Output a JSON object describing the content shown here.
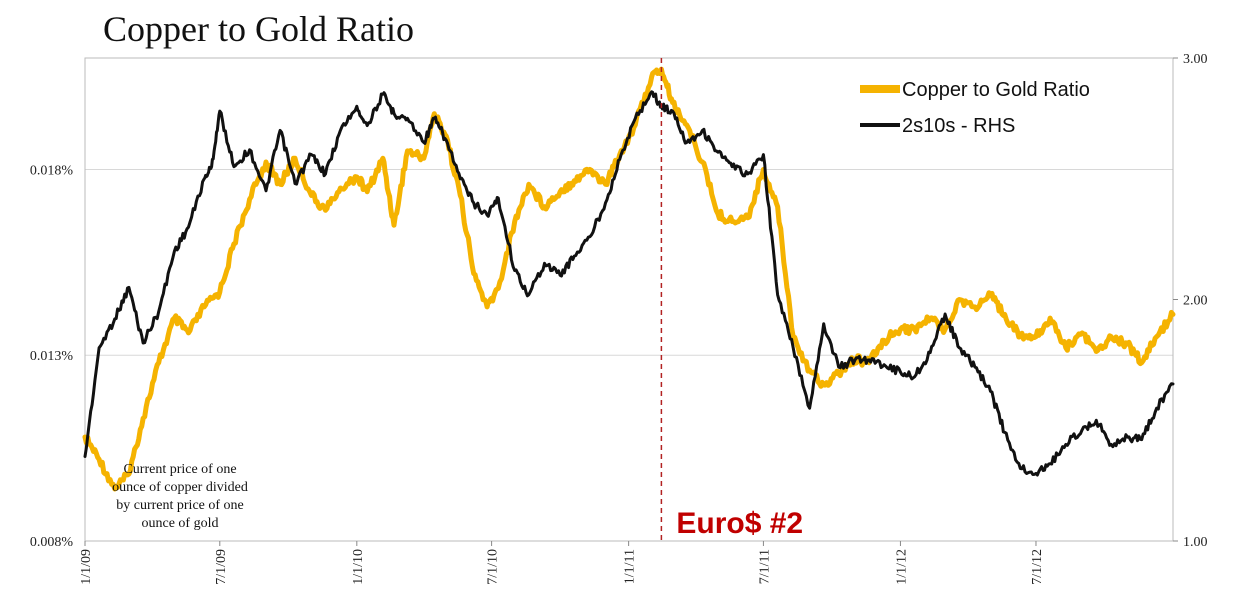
{
  "title": "Copper to Gold Ratio",
  "chart_data": {
    "type": "line",
    "title": "Copper to Gold Ratio",
    "x_range": [
      "2009-01-01",
      "2013-01-01"
    ],
    "x_tick_labels": [
      "1/1/09",
      "7/1/09",
      "1/1/10",
      "7/1/10",
      "1/1/11",
      "7/1/11",
      "1/1/12",
      "7/1/12"
    ],
    "x_ticks": [
      "2009-01-01",
      "2009-07-01",
      "2010-01-01",
      "2010-07-01",
      "2011-01-01",
      "2011-07-01",
      "2012-01-01",
      "2012-07-01"
    ],
    "left_axis": {
      "min": 0.008,
      "max": 0.021,
      "ticks": [
        0.008,
        0.013,
        0.018
      ],
      "tick_labels": [
        "0.008%",
        "0.013%",
        "0.018%"
      ],
      "format": "percent"
    },
    "right_axis": {
      "min": 1.0,
      "max": 3.0,
      "ticks": [
        1.0,
        2.0,
        3.0
      ],
      "tick_labels": [
        "1.00",
        "2.00",
        "3.00"
      ]
    },
    "grid": "horizontal",
    "legend_position": "top-right",
    "series": [
      {
        "name": "Copper to Gold Ratio",
        "axis": "left",
        "color": "#F5B301",
        "x": [
          "2009-01-01",
          "2009-01-20",
          "2009-02-10",
          "2009-03-01",
          "2009-03-20",
          "2009-04-10",
          "2009-05-01",
          "2009-05-20",
          "2009-06-10",
          "2009-07-01",
          "2009-07-20",
          "2009-08-10",
          "2009-09-01",
          "2009-09-20",
          "2009-10-10",
          "2009-11-01",
          "2009-11-20",
          "2009-12-10",
          "2010-01-01",
          "2010-01-15",
          "2010-02-05",
          "2010-02-20",
          "2010-03-10",
          "2010-04-01",
          "2010-04-15",
          "2010-05-01",
          "2010-05-20",
          "2010-06-07",
          "2010-06-25",
          "2010-07-10",
          "2010-08-01",
          "2010-08-20",
          "2010-09-10",
          "2010-10-01",
          "2010-10-20",
          "2010-11-10",
          "2010-12-01",
          "2010-12-20",
          "2011-01-10",
          "2011-02-01",
          "2011-02-14",
          "2011-03-01",
          "2011-03-20",
          "2011-04-10",
          "2011-05-01",
          "2011-05-20",
          "2011-06-10",
          "2011-07-01",
          "2011-07-20",
          "2011-08-10",
          "2011-09-01",
          "2011-09-20",
          "2011-10-10",
          "2011-11-01",
          "2011-11-20",
          "2011-12-10",
          "2012-01-01",
          "2012-01-20",
          "2012-02-10",
          "2012-03-01",
          "2012-03-20",
          "2012-04-10",
          "2012-05-01",
          "2012-05-20",
          "2012-06-10",
          "2012-07-01",
          "2012-07-20",
          "2012-08-10",
          "2012-09-01",
          "2012-09-20",
          "2012-10-10",
          "2012-11-01",
          "2012-11-20",
          "2012-12-10",
          "2013-01-01"
        ],
        "values": [
          0.0108,
          0.0102,
          0.0094,
          0.0098,
          0.0113,
          0.0128,
          0.014,
          0.0136,
          0.0143,
          0.0147,
          0.016,
          0.0172,
          0.0182,
          0.0176,
          0.0183,
          0.0173,
          0.0169,
          0.0175,
          0.0178,
          0.0174,
          0.0183,
          0.0165,
          0.0185,
          0.0183,
          0.0195,
          0.0189,
          0.0173,
          0.0152,
          0.0143,
          0.0148,
          0.0166,
          0.0176,
          0.017,
          0.0174,
          0.0177,
          0.018,
          0.0176,
          0.0184,
          0.0192,
          0.0205,
          0.0207,
          0.0198,
          0.0192,
          0.0182,
          0.0168,
          0.0166,
          0.0167,
          0.018,
          0.017,
          0.0135,
          0.0126,
          0.0122,
          0.0125,
          0.0129,
          0.0128,
          0.0134,
          0.0137,
          0.0137,
          0.014,
          0.0137,
          0.0145,
          0.0143,
          0.0146,
          0.0141,
          0.0135,
          0.0135,
          0.014,
          0.0132,
          0.0136,
          0.0131,
          0.0135,
          0.0133,
          0.0128,
          0.0135,
          0.0141
        ]
      },
      {
        "name": "2s10s - RHS",
        "axis": "right",
        "color": "#111111",
        "x": [
          "2009-01-01",
          "2009-01-20",
          "2009-02-10",
          "2009-03-01",
          "2009-03-20",
          "2009-04-10",
          "2009-05-01",
          "2009-05-20",
          "2009-06-10",
          "2009-06-20",
          "2009-07-01",
          "2009-07-20",
          "2009-08-10",
          "2009-09-01",
          "2009-09-20",
          "2009-10-10",
          "2009-11-01",
          "2009-11-20",
          "2009-12-10",
          "2010-01-01",
          "2010-01-15",
          "2010-02-05",
          "2010-02-20",
          "2010-03-10",
          "2010-04-01",
          "2010-04-15",
          "2010-05-01",
          "2010-05-20",
          "2010-06-07",
          "2010-06-25",
          "2010-07-10",
          "2010-08-01",
          "2010-08-20",
          "2010-09-10",
          "2010-10-01",
          "2010-10-20",
          "2010-11-10",
          "2010-12-01",
          "2010-12-20",
          "2011-01-10",
          "2011-02-01",
          "2011-02-14",
          "2011-03-01",
          "2011-03-20",
          "2011-04-10",
          "2011-05-01",
          "2011-05-20",
          "2011-06-10",
          "2011-07-01",
          "2011-07-20",
          "2011-08-10",
          "2011-09-01",
          "2011-09-20",
          "2011-10-10",
          "2011-11-01",
          "2011-11-20",
          "2011-12-10",
          "2012-01-01",
          "2012-01-20",
          "2012-02-10",
          "2012-03-01",
          "2012-03-20",
          "2012-04-10",
          "2012-05-01",
          "2012-05-20",
          "2012-06-10",
          "2012-07-01",
          "2012-07-20",
          "2012-08-10",
          "2012-09-01",
          "2012-09-20",
          "2012-10-10",
          "2012-11-01",
          "2012-11-20",
          "2012-12-10",
          "2013-01-01"
        ],
        "values": [
          1.35,
          1.8,
          1.92,
          2.05,
          1.82,
          1.95,
          2.2,
          2.3,
          2.5,
          2.55,
          2.78,
          2.55,
          2.62,
          2.45,
          2.7,
          2.48,
          2.6,
          2.52,
          2.7,
          2.8,
          2.72,
          2.85,
          2.77,
          2.75,
          2.65,
          2.75,
          2.66,
          2.5,
          2.4,
          2.35,
          2.42,
          2.12,
          2.02,
          2.15,
          2.1,
          2.18,
          2.26,
          2.4,
          2.58,
          2.75,
          2.86,
          2.8,
          2.78,
          2.65,
          2.7,
          2.61,
          2.55,
          2.52,
          2.6,
          2.02,
          1.8,
          1.55,
          1.9,
          1.72,
          1.75,
          1.75,
          1.73,
          1.7,
          1.68,
          1.78,
          1.94,
          1.8,
          1.72,
          1.62,
          1.45,
          1.3,
          1.28,
          1.32,
          1.4,
          1.46,
          1.5,
          1.4,
          1.43,
          1.42,
          1.55,
          1.65
        ]
      }
    ],
    "annotations": [
      {
        "type": "vline",
        "x": "2011-02-14",
        "color": "#B22222",
        "style": "dashed"
      },
      {
        "type": "text",
        "text": "Euro$ #2",
        "color": "#C00000"
      },
      {
        "type": "text",
        "text": "Current price of one ounce of copper divided by current price of one ounce of gold",
        "lines": [
          "Current price of one",
          "ounce of copper divided",
          "by current price of one",
          "ounce of gold"
        ]
      }
    ]
  }
}
